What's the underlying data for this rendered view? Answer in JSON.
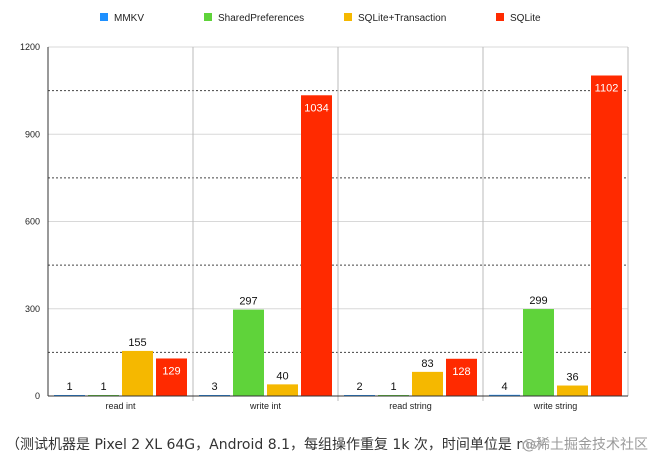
{
  "chart_data": {
    "type": "bar",
    "categories": [
      "read int",
      "write int",
      "read string",
      "write string"
    ],
    "series": [
      {
        "name": "MMKV",
        "color": "#1e90ff",
        "values": [
          1,
          3,
          2,
          4
        ]
      },
      {
        "name": "SharedPreferences",
        "color": "#5fd33a",
        "values": [
          1,
          297,
          1,
          299
        ]
      },
      {
        "name": "SQLite+Transaction",
        "color": "#f5b800",
        "values": [
          155,
          40,
          83,
          36
        ]
      },
      {
        "name": "SQLite",
        "color": "#ff2a00",
        "values": [
          129,
          1034,
          128,
          1102
        ]
      }
    ],
    "ylim": [
      0,
      1200
    ],
    "yticks": [
      0,
      300,
      600,
      900,
      1200
    ],
    "minor_gridlines": [
      150,
      450,
      750,
      1050
    ],
    "legend_position": "top",
    "grid": true
  },
  "caption": "（测试机器是 Pixel 2 XL 64G，Android 8.1，每组操作重复 1k 次，时间单位是 ms）",
  "watermark": "@稀土掘金技术社区"
}
